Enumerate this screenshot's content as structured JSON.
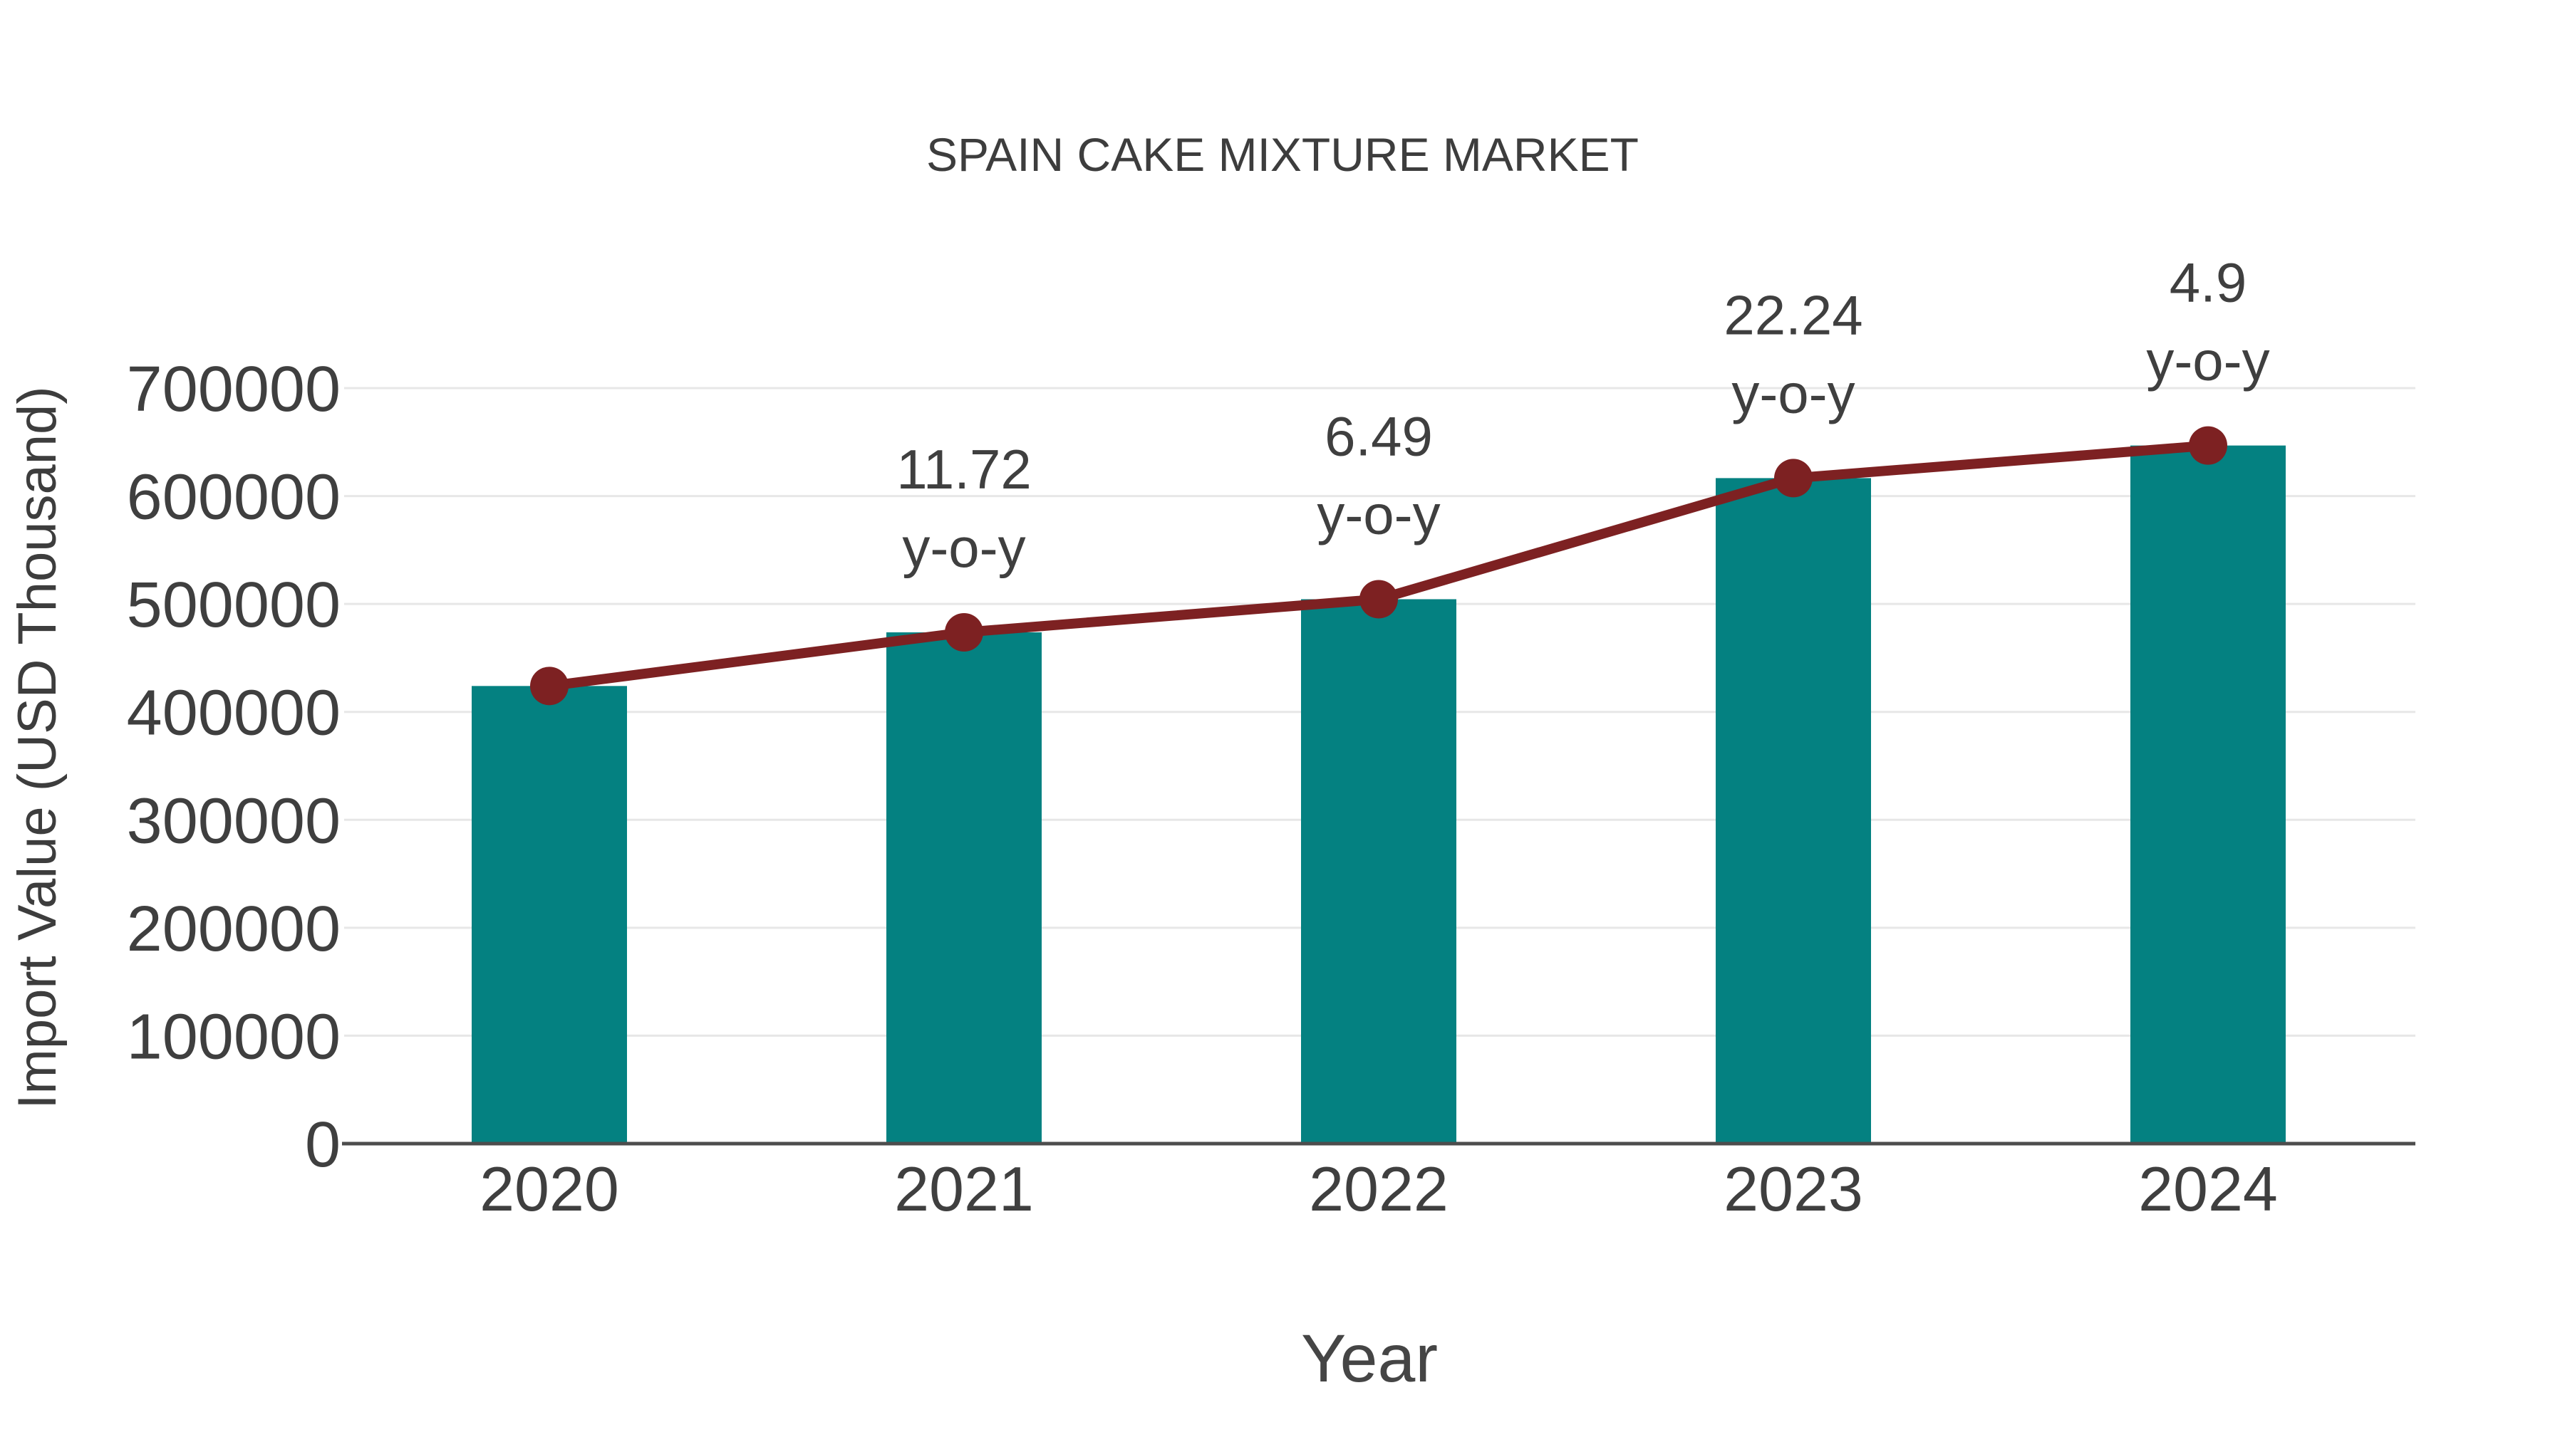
{
  "colors": {
    "bar": "#048181",
    "line": "#7d2122",
    "marker": "#7d2122",
    "text": "#3f3f3f",
    "axis_line": "#4d4d4d",
    "gridline": "#e7e7e7",
    "background": "#ffffff"
  },
  "chart_data": {
    "type": "bar",
    "title": "SPAIN CAKE MIXTURE MARKET",
    "xlabel": "Year",
    "ylabel": "Import Value (USD Thousand)",
    "categories": [
      "2020",
      "2021",
      "2022",
      "2023",
      "2024"
    ],
    "series": [
      {
        "name": "Import Value bars",
        "type": "bar",
        "color": "#048181",
        "values": [
          424000,
          473700,
          504400,
          616600,
          646800
        ]
      },
      {
        "name": "Import Value trend line",
        "type": "line",
        "color": "#7d2122",
        "values": [
          424000,
          473700,
          504400,
          616600,
          646800
        ]
      }
    ],
    "annotations": [
      {
        "category": "2021",
        "text": "11.72",
        "subtext": "y-o-y",
        "growth_pct": 11.72
      },
      {
        "category": "2022",
        "text": "6.49",
        "subtext": "y-o-y",
        "growth_pct": 6.49
      },
      {
        "category": "2023",
        "text": "22.24",
        "subtext": "y-o-y",
        "growth_pct": 22.24
      },
      {
        "category": "2024",
        "text": "4.9",
        "subtext": "y-o-y",
        "growth_pct": 4.9
      }
    ],
    "ylim": [
      0,
      700000
    ],
    "yticks": [
      0,
      100000,
      200000,
      300000,
      400000,
      500000,
      600000,
      700000
    ],
    "grid": "horizontal-light",
    "legend_position": "none"
  }
}
